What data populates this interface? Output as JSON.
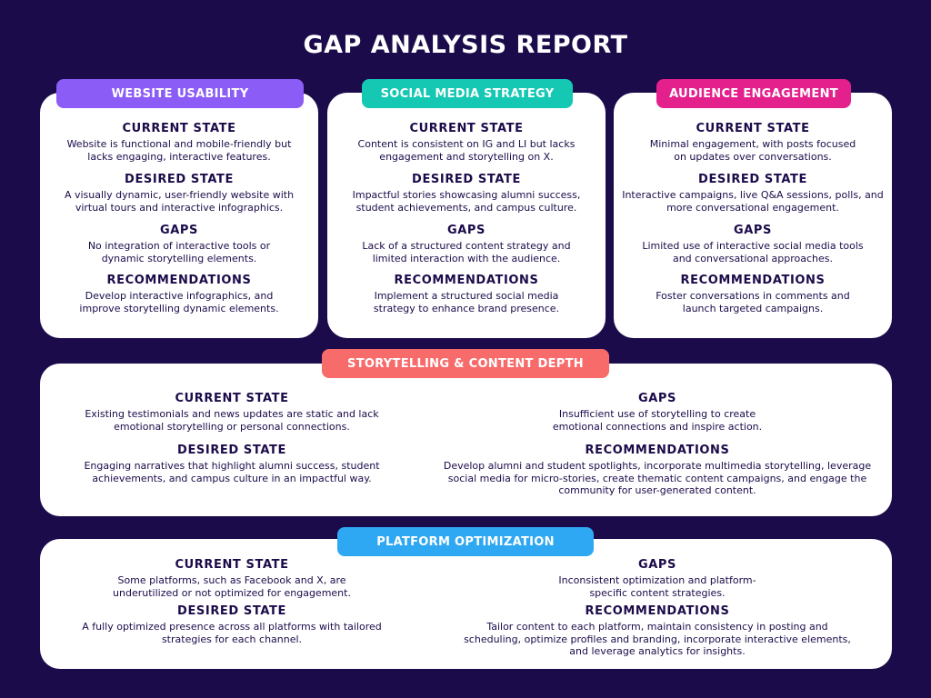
{
  "title": "GAP ANALYSIS REPORT",
  "colors": {
    "background": "#1c0b4a",
    "website": "#8b5cf6",
    "social": "#14c8b4",
    "audience": "#e4208c",
    "storytelling": "#f76b6b",
    "platform": "#2ea8f2"
  },
  "cards": {
    "website": {
      "label": "WEBSITE USABILITY",
      "current_h": "CURRENT STATE",
      "current_t": "Website is functional and mobile-friendly but lacks engaging, interactive features.",
      "desired_h": "DESIRED STATE",
      "desired_t": "A visually dynamic, user-friendly website with virtual tours and interactive infographics.",
      "gaps_h": "GAPS",
      "gaps_t": "No integration of interactive tools or dynamic storytelling elements.",
      "rec_h": "RECOMMENDATIONS",
      "rec_t": "Develop interactive infographics, and improve storytelling dynamic elements."
    },
    "social": {
      "label": "SOCIAL MEDIA STRATEGY",
      "current_h": "CURRENT STATE",
      "current_t": "Content is consistent on IG and LI but lacks engagement and storytelling on X.",
      "desired_h": "DESIRED STATE",
      "desired_t": "Impactful stories showcasing alumni success, student achievements, and campus culture.",
      "gaps_h": "GAPS",
      "gaps_t": "Lack of a structured content strategy and limited interaction with the audience.",
      "rec_h": "RECOMMENDATIONS",
      "rec_t": "Implement a structured social media strategy to enhance brand presence."
    },
    "audience": {
      "label": "AUDIENCE ENGAGEMENT",
      "current_h": "CURRENT STATE",
      "current_t": "Minimal engagement, with posts focused on updates over conversations.",
      "desired_h": "DESIRED STATE",
      "desired_t": "Interactive campaigns, live Q&A sessions, polls, and more conversational engagement.",
      "gaps_h": "GAPS",
      "gaps_t": "Limited use of interactive social media tools and conversational approaches.",
      "rec_h": "RECOMMENDATIONS",
      "rec_t": "Foster conversations in comments and launch targeted campaigns."
    },
    "storytelling": {
      "label": "STORYTELLING & CONTENT DEPTH",
      "current_h": "CURRENT STATE",
      "current_t": "Existing testimonials and news updates are static and lack emotional storytelling or personal connections.",
      "desired_h": "DESIRED STATE",
      "desired_t": "Engaging narratives that highlight alumni success, student achievements, and campus culture in an impactful way.",
      "gaps_h": "GAPS",
      "gaps_t": "Insufficient use of storytelling to create emotional connections and inspire action.",
      "rec_h": "RECOMMENDATIONS",
      "rec_t": "Develop alumni and student spotlights, incorporate multimedia storytelling, leverage social media for micro-stories, create thematic content campaigns, and engage the community for user-generated content."
    },
    "platform": {
      "label": "PLATFORM OPTIMIZATION",
      "current_h": "CURRENT STATE",
      "current_t": "Some platforms, such as Facebook and X, are underutilized or not optimized for engagement.",
      "desired_h": "DESIRED STATE",
      "desired_t": "A fully optimized presence across all platforms with tailored strategies for each channel.",
      "gaps_h": "GAPS",
      "gaps_t": "Inconsistent optimization and platform-specific content strategies.",
      "rec_h": "RECOMMENDATIONS",
      "rec_t": "Tailor content to each platform, maintain consistency in posting and scheduling, optimize profiles and branding, incorporate interactive elements, and leverage analytics for insights."
    }
  }
}
